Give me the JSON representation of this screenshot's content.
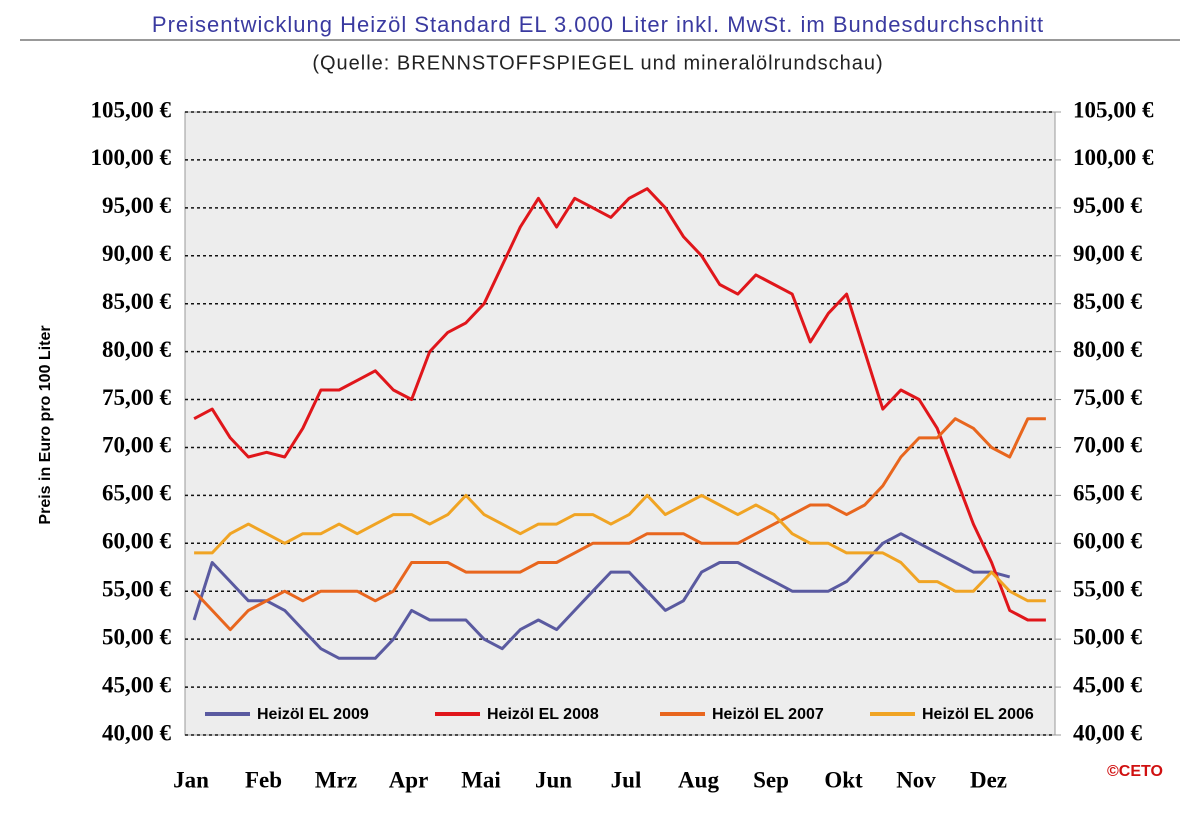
{
  "chart_data": {
    "type": "line",
    "title": "Preisentwicklung Heizöl Standard EL 3.000 Liter inkl. MwSt. im Bundesdurchschnitt",
    "subtitle": "(Quelle: BRENNSTOFFSPIEGEL und mineralölrundschau)",
    "y_label": "Preis in Euro pro 100 Liter",
    "logo_text": "©CETO",
    "categories": [
      "Jan",
      null,
      null,
      null,
      "Feb",
      null,
      null,
      null,
      "Mrz",
      null,
      null,
      null,
      "Apr",
      null,
      null,
      null,
      "Mai",
      null,
      null,
      null,
      "Jun",
      null,
      null,
      null,
      "Jul",
      null,
      null,
      null,
      "Aug",
      null,
      null,
      null,
      "Sep",
      null,
      null,
      null,
      "Okt",
      null,
      null,
      null,
      "Nov",
      null,
      null,
      null,
      "Dez",
      null,
      null,
      null
    ],
    "series": [
      {
        "name": "Heizöl EL 2009",
        "color": "#5a5aa0",
        "values": [
          52,
          58,
          56,
          54,
          54,
          53,
          51,
          49,
          48,
          48,
          48,
          50,
          53,
          52,
          52,
          52,
          50,
          49,
          51,
          52,
          51,
          53,
          55,
          57,
          57,
          55,
          53,
          54,
          57,
          58,
          58,
          57,
          56,
          55,
          55,
          55,
          56,
          58,
          60,
          61,
          60,
          59,
          58,
          57,
          57,
          56.5,
          null,
          null
        ]
      },
      {
        "name": "Heizöl EL 2008",
        "color": "#e0161b",
        "values": [
          73,
          74,
          71,
          69,
          69.5,
          69,
          72,
          76,
          76,
          77,
          78,
          76,
          75,
          80,
          82,
          83,
          85,
          89,
          93,
          96,
          93,
          96,
          95,
          94,
          96,
          97,
          95,
          92,
          90,
          87,
          86,
          88,
          87,
          86,
          81,
          84,
          86,
          80,
          74,
          76,
          75,
          72,
          67,
          62,
          58,
          53,
          52,
          52
        ]
      },
      {
        "name": "Heizöl EL 2007",
        "color": "#e8661e",
        "values": [
          55,
          53,
          51,
          53,
          54,
          55,
          54,
          55,
          55,
          55,
          54,
          55,
          58,
          58,
          58,
          57,
          57,
          57,
          57,
          58,
          58,
          59,
          60,
          60,
          60,
          61,
          61,
          61,
          60,
          60,
          60,
          61,
          62,
          63,
          64,
          64,
          63,
          64,
          66,
          69,
          71,
          71,
          73,
          72,
          70,
          69,
          73,
          73
        ]
      },
      {
        "name": "Heizöl EL 2006",
        "color": "#f0a424",
        "values": [
          59,
          59,
          61,
          62,
          61,
          60,
          61,
          61,
          62,
          61,
          62,
          63,
          63,
          62,
          63,
          65,
          63,
          62,
          61,
          62,
          62,
          63,
          63,
          62,
          63,
          65,
          63,
          64,
          65,
          64,
          63,
          64,
          63,
          61,
          60,
          60,
          59,
          59,
          59,
          58,
          56,
          56,
          55,
          55,
          57,
          55,
          54,
          54
        ]
      }
    ],
    "ylim": [
      40,
      105
    ],
    "yticks": [
      {
        "value": 40,
        "label": "40,00 €"
      },
      {
        "value": 45,
        "label": "45,00 €"
      },
      {
        "value": 50,
        "label": "50,00 €"
      },
      {
        "value": 55,
        "label": "55,00 €"
      },
      {
        "value": 60,
        "label": "60,00 €"
      },
      {
        "value": 65,
        "label": "65,00 €"
      },
      {
        "value": 70,
        "label": "70,00 €"
      },
      {
        "value": 75,
        "label": "75,00 €"
      },
      {
        "value": 80,
        "label": "80,00 €"
      },
      {
        "value": 85,
        "label": "85,00 €"
      },
      {
        "value": 90,
        "label": "90,00 €"
      },
      {
        "value": 95,
        "label": "95,00 €"
      },
      {
        "value": 100,
        "label": "100,00 €"
      },
      {
        "value": 105,
        "label": "105,00 €"
      }
    ],
    "y2lim": [
      40,
      105
    ],
    "y2ticks": [
      {
        "value": 40,
        "label": "40,00 €"
      },
      {
        "value": 45,
        "label": "45,00 €"
      },
      {
        "value": 50,
        "label": "50,00 €"
      },
      {
        "value": 55,
        "label": "55,00 €"
      },
      {
        "value": 60,
        "label": "60,00 €"
      },
      {
        "value": 65,
        "label": "65,00 €"
      },
      {
        "value": 70,
        "label": "70,00 €"
      },
      {
        "value": 75,
        "label": "75,00 €"
      },
      {
        "value": 80,
        "label": "80,00 €"
      },
      {
        "value": 85,
        "label": "85,00 €"
      },
      {
        "value": 90,
        "label": "90,00 €"
      },
      {
        "value": 95,
        "label": "95,00 €"
      },
      {
        "value": 100,
        "label": "100,00 €"
      },
      {
        "value": 105,
        "label": "105,00 €"
      }
    ],
    "grid": true
  }
}
